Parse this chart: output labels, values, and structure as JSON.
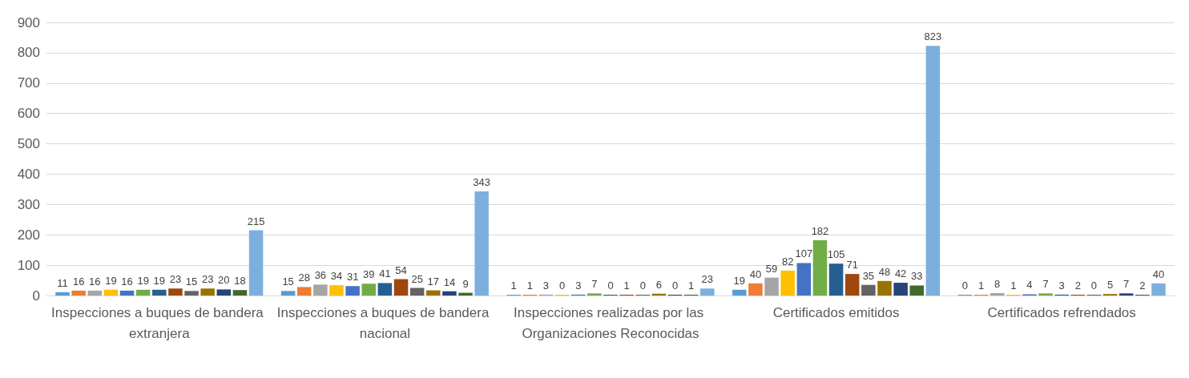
{
  "chart_data": {
    "type": "bar",
    "categories": [
      "Inspecciones a buques de bandera extranjera",
      "Inspecciones a buques de bandera nacional",
      "Inspecciones realizadas por las Organizaciones Reconocidas",
      "Certificados emitidos",
      "Certificados refrendados"
    ],
    "series": [
      {
        "color": "#5b9bd5",
        "values": [
          11,
          15,
          1,
          19,
          0
        ]
      },
      {
        "color": "#ed7d31",
        "values": [
          16,
          28,
          1,
          40,
          1
        ]
      },
      {
        "color": "#a5a5a5",
        "values": [
          16,
          36,
          3,
          59,
          8
        ]
      },
      {
        "color": "#ffc000",
        "values": [
          19,
          34,
          0,
          82,
          1
        ]
      },
      {
        "color": "#4472c4",
        "values": [
          16,
          31,
          3,
          107,
          4
        ]
      },
      {
        "color": "#70ad47",
        "values": [
          19,
          39,
          7,
          182,
          7
        ]
      },
      {
        "color": "#255e91",
        "values": [
          19,
          41,
          0,
          105,
          3
        ]
      },
      {
        "color": "#9e480e",
        "values": [
          23,
          54,
          1,
          71,
          2
        ]
      },
      {
        "color": "#636363",
        "values": [
          15,
          25,
          0,
          35,
          0
        ]
      },
      {
        "color": "#997300",
        "values": [
          23,
          17,
          6,
          48,
          5
        ]
      },
      {
        "color": "#264478",
        "values": [
          20,
          14,
          0,
          42,
          7
        ]
      },
      {
        "color": "#43682b",
        "values": [
          18,
          9,
          1,
          33,
          2
        ]
      },
      {
        "color": "#7cafdd",
        "values": [
          215,
          343,
          23,
          823,
          40
        ]
      }
    ],
    "ylim": [
      0,
      900
    ],
    "yticks": [
      0,
      100,
      200,
      300,
      400,
      500,
      600,
      700,
      800,
      900
    ],
    "grid": "y",
    "data_labels": true
  }
}
